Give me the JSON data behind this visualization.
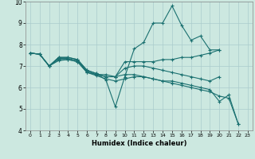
{
  "xlabel": "Humidex (Indice chaleur)",
  "xlim": [
    -0.5,
    23.5
  ],
  "ylim": [
    4,
    10
  ],
  "background_color": "#cce8e0",
  "grid_color": "#aacccc",
  "line_color": "#1a7070",
  "lines": [
    {
      "x": [
        0,
        1,
        2,
        3,
        4,
        5,
        6,
        7,
        8,
        9,
        10,
        11,
        12,
        13,
        14,
        15,
        16,
        17,
        18,
        19,
        20
      ],
      "y": [
        7.6,
        7.55,
        7.0,
        7.4,
        7.4,
        7.3,
        6.8,
        6.65,
        6.35,
        5.1,
        6.5,
        7.8,
        8.1,
        9.0,
        9.0,
        9.8,
        8.9,
        8.2,
        8.4,
        7.75,
        7.75
      ]
    },
    {
      "x": [
        0,
        1,
        2,
        3,
        4,
        5,
        6,
        7,
        8,
        9,
        10,
        11,
        12,
        13,
        14,
        15,
        16,
        17,
        18,
        19,
        20
      ],
      "y": [
        7.6,
        7.55,
        7.0,
        7.4,
        7.4,
        7.3,
        6.8,
        6.65,
        6.5,
        6.5,
        7.2,
        7.2,
        7.2,
        7.2,
        7.3,
        7.3,
        7.4,
        7.4,
        7.5,
        7.6,
        7.75
      ]
    },
    {
      "x": [
        0,
        1,
        2,
        3,
        4,
        5,
        6,
        7,
        8,
        9,
        10,
        11,
        12,
        13,
        14,
        15,
        16,
        17,
        18,
        19,
        20
      ],
      "y": [
        7.6,
        7.55,
        7.0,
        7.35,
        7.35,
        7.25,
        6.75,
        6.6,
        6.5,
        6.5,
        6.9,
        7.0,
        7.0,
        6.9,
        6.8,
        6.7,
        6.6,
        6.5,
        6.4,
        6.3,
        6.5
      ]
    },
    {
      "x": [
        0,
        1,
        2,
        3,
        4,
        5,
        6,
        7,
        8,
        9,
        10,
        11,
        12,
        13,
        14,
        15,
        16,
        17,
        18,
        19,
        20,
        21,
        22
      ],
      "y": [
        7.6,
        7.55,
        7.0,
        7.3,
        7.3,
        7.2,
        6.7,
        6.6,
        6.6,
        6.5,
        6.6,
        6.6,
        6.5,
        6.4,
        6.3,
        6.3,
        6.2,
        6.1,
        6.0,
        5.9,
        5.35,
        5.65,
        4.3
      ]
    },
    {
      "x": [
        0,
        1,
        2,
        3,
        4,
        5,
        6,
        7,
        8,
        9,
        10,
        11,
        12,
        13,
        14,
        15,
        16,
        17,
        18,
        19,
        20,
        21,
        22
      ],
      "y": [
        7.6,
        7.55,
        7.0,
        7.25,
        7.3,
        7.2,
        6.7,
        6.55,
        6.4,
        6.3,
        6.4,
        6.5,
        6.5,
        6.4,
        6.3,
        6.2,
        6.1,
        6.0,
        5.9,
        5.8,
        5.6,
        5.5,
        4.3
      ]
    }
  ],
  "yticks": [
    4,
    5,
    6,
    7,
    8,
    9,
    10
  ],
  "xticks": [
    0,
    1,
    2,
    3,
    4,
    5,
    6,
    7,
    8,
    9,
    10,
    11,
    12,
    13,
    14,
    15,
    16,
    17,
    18,
    19,
    20,
    21,
    22,
    23
  ],
  "marker": "+",
  "marker_size": 3,
  "linewidth": 0.8
}
